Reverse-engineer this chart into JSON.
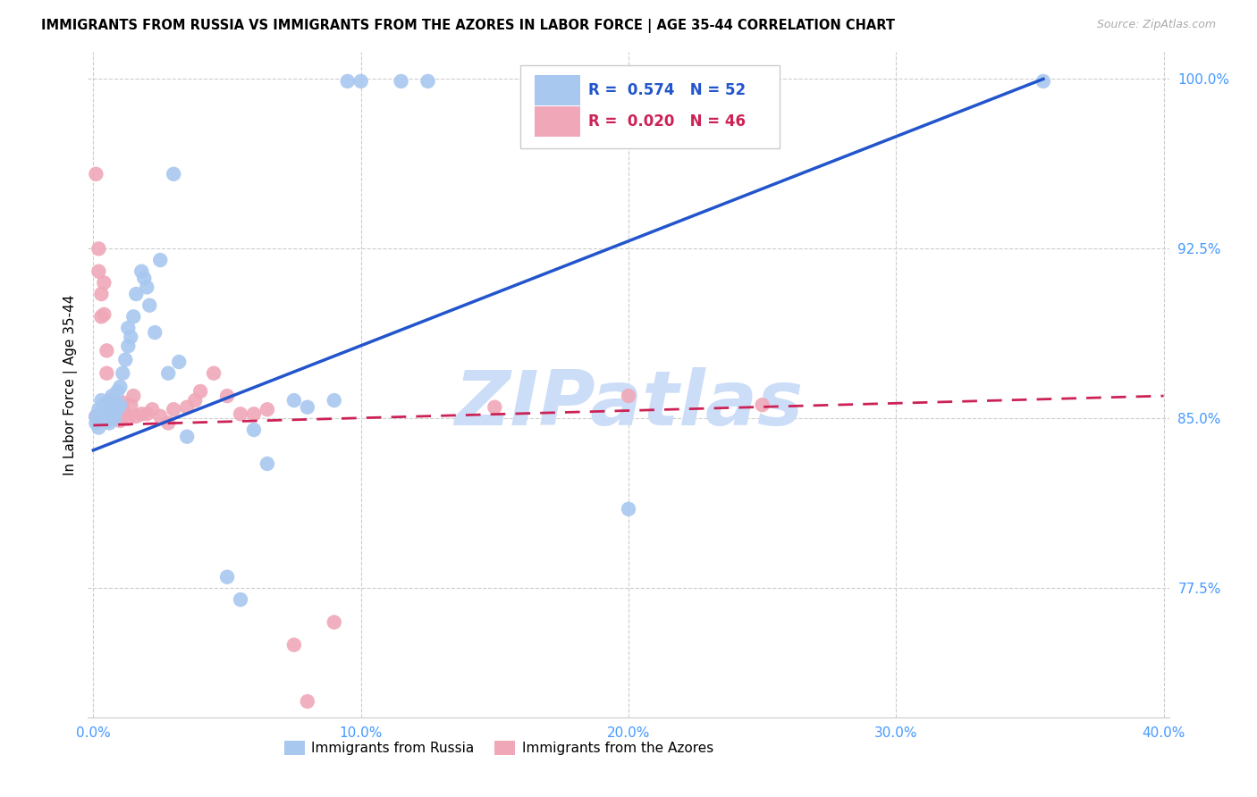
{
  "title": "IMMIGRANTS FROM RUSSIA VS IMMIGRANTS FROM THE AZORES IN LABOR FORCE | AGE 35-44 CORRELATION CHART",
  "source": "Source: ZipAtlas.com",
  "ylabel": "In Labor Force | Age 35-44",
  "xlim": [
    -0.002,
    0.402
  ],
  "ylim": [
    0.718,
    1.012
  ],
  "xtick_labels": [
    "0.0%",
    "10.0%",
    "20.0%",
    "30.0%",
    "40.0%"
  ],
  "xtick_vals": [
    0.0,
    0.1,
    0.2,
    0.3,
    0.4
  ],
  "ytick_labels": [
    "77.5%",
    "85.0%",
    "92.5%",
    "100.0%"
  ],
  "ytick_vals": [
    0.775,
    0.85,
    0.925,
    1.0
  ],
  "russia_R": 0.574,
  "russia_N": 52,
  "azores_R": 0.02,
  "azores_N": 46,
  "russia_color": "#a8c8f0",
  "azores_color": "#f0a8b8",
  "russia_line_color": "#2255cc",
  "azores_line_color": "#cc2255",
  "watermark": "ZIPatlas",
  "watermark_color": "#ccddf8",
  "russia_line_x": [
    0.0,
    0.355
  ],
  "russia_line_y": [
    0.836,
    1.0
  ],
  "azores_line_x": [
    0.0,
    0.4
  ],
  "azores_line_y": [
    0.847,
    0.86
  ],
  "russia_x": [
    0.001,
    0.001,
    0.002,
    0.002,
    0.003,
    0.003,
    0.003,
    0.004,
    0.004,
    0.005,
    0.005,
    0.006,
    0.006,
    0.006,
    0.007,
    0.007,
    0.008,
    0.008,
    0.009,
    0.009,
    0.01,
    0.01,
    0.011,
    0.012,
    0.013,
    0.013,
    0.014,
    0.015,
    0.016,
    0.018,
    0.019,
    0.02,
    0.021,
    0.023,
    0.025,
    0.028,
    0.03,
    0.032,
    0.035,
    0.05,
    0.055,
    0.06,
    0.065,
    0.075,
    0.08,
    0.09,
    0.095,
    0.1,
    0.115,
    0.125,
    0.2,
    0.355
  ],
  "russia_y": [
    0.848,
    0.851,
    0.846,
    0.854,
    0.85,
    0.853,
    0.858,
    0.851,
    0.856,
    0.849,
    0.855,
    0.848,
    0.853,
    0.857,
    0.852,
    0.86,
    0.85,
    0.856,
    0.854,
    0.862,
    0.856,
    0.864,
    0.87,
    0.876,
    0.882,
    0.89,
    0.886,
    0.895,
    0.905,
    0.915,
    0.912,
    0.908,
    0.9,
    0.888,
    0.92,
    0.87,
    0.958,
    0.875,
    0.842,
    0.78,
    0.77,
    0.845,
    0.83,
    0.858,
    0.855,
    0.858,
    0.999,
    0.999,
    0.999,
    0.999,
    0.81,
    0.999
  ],
  "azores_x": [
    0.001,
    0.001,
    0.002,
    0.002,
    0.003,
    0.003,
    0.004,
    0.004,
    0.005,
    0.005,
    0.006,
    0.006,
    0.007,
    0.007,
    0.008,
    0.008,
    0.009,
    0.009,
    0.01,
    0.01,
    0.011,
    0.012,
    0.013,
    0.014,
    0.015,
    0.016,
    0.018,
    0.02,
    0.022,
    0.025,
    0.028,
    0.03,
    0.035,
    0.038,
    0.04,
    0.045,
    0.05,
    0.055,
    0.06,
    0.065,
    0.075,
    0.08,
    0.09,
    0.15,
    0.2,
    0.25
  ],
  "azores_y": [
    0.958,
    0.851,
    0.925,
    0.915,
    0.905,
    0.895,
    0.91,
    0.896,
    0.88,
    0.87,
    0.858,
    0.854,
    0.852,
    0.858,
    0.85,
    0.854,
    0.85,
    0.852,
    0.849,
    0.853,
    0.857,
    0.852,
    0.85,
    0.856,
    0.86,
    0.851,
    0.852,
    0.852,
    0.854,
    0.851,
    0.848,
    0.854,
    0.855,
    0.858,
    0.862,
    0.87,
    0.86,
    0.852,
    0.852,
    0.854,
    0.75,
    0.725,
    0.76,
    0.855,
    0.86,
    0.856
  ]
}
